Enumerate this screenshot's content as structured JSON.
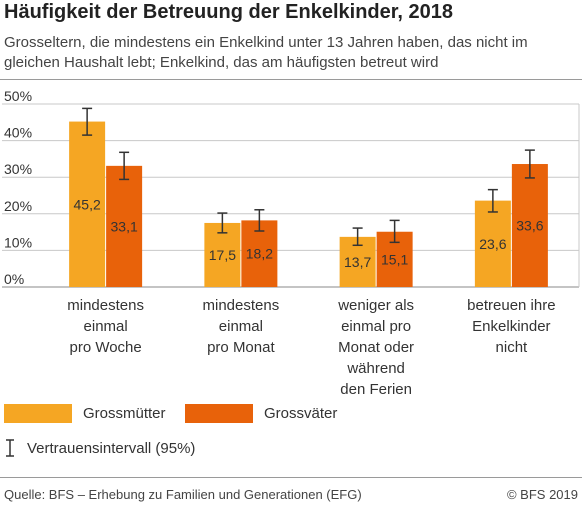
{
  "title": "Häufigkeit der Betreuung der Enkelkinder, 2018",
  "subtitle": "Grosseltern, die mindestens ein Enkelkind unter 13 Jahren  haben, das nicht im gleichen Haushalt lebt; Enkelkind, das am häufigsten betreut wird",
  "legend": {
    "grandmothers": "Grossmütter",
    "grandfathers": "Grossväter",
    "confidence": "Vertrauensintervall (95%)"
  },
  "footer": {
    "source": "Quelle: BFS – Erhebung zu Familien und Generationen (EFG)",
    "copyright": "© BFS 2019"
  },
  "colors": {
    "grandmothers": "#f5a623",
    "grandfathers": "#e8620a",
    "grid": "#c8c8c8",
    "errorbar": "#333333"
  },
  "chart_data": {
    "type": "bar",
    "categories": [
      "mindestens einmal pro Woche",
      "mindestens einmal pro Monat",
      "weniger als einmal pro Monat oder während den Ferien",
      "betreuen ihre Enkelkinder nicht"
    ],
    "category_lines": [
      [
        "mindestens",
        "einmal",
        "pro Woche"
      ],
      [
        "mindestens",
        "einmal",
        "pro Monat"
      ],
      [
        "weniger als",
        "einmal pro",
        "Monat oder",
        "während",
        "den Ferien"
      ],
      [
        "betreuen ihre",
        "Enkelkinder",
        "nicht"
      ]
    ],
    "series": [
      {
        "name": "Grossmütter",
        "values": [
          45.2,
          17.5,
          13.7,
          23.6
        ],
        "ci_low": [
          41.5,
          14.8,
          11.4,
          20.5
        ],
        "ci_high": [
          48.8,
          20.2,
          16.1,
          26.6
        ]
      },
      {
        "name": "Grossväter",
        "values": [
          33.1,
          18.2,
          15.1,
          33.6
        ],
        "ci_low": [
          29.4,
          15.3,
          12.2,
          29.8
        ],
        "ci_high": [
          36.8,
          21.1,
          18.2,
          37.4
        ]
      }
    ],
    "value_labels": [
      [
        "45,2",
        "17,5",
        "13,7",
        "23,6"
      ],
      [
        "33,1",
        "18,2",
        "15,1",
        "33,6"
      ]
    ],
    "yticks": [
      0,
      10,
      20,
      30,
      40,
      50
    ],
    "ytick_labels": [
      "0%",
      "10%",
      "20%",
      "30%",
      "40%",
      "50%"
    ],
    "ylim": [
      0,
      50
    ],
    "grid": true,
    "legend_position": "bottom-left"
  }
}
